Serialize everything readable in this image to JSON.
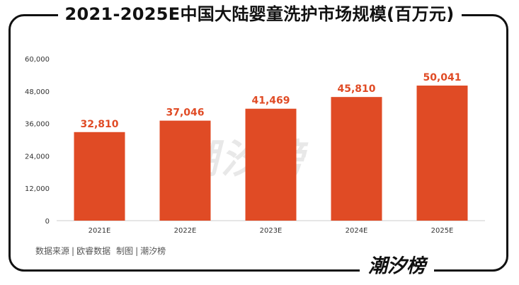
{
  "title": "2021-2025E中国大陆婴童洗护市场规模(百万元)",
  "source": {
    "data_label": "数据来源",
    "data_org": "欧睿数据",
    "made_label": "制图",
    "made_org": "潮汐榜"
  },
  "watermark_text": "潮汐榜",
  "footer_logo": "潮汐榜",
  "colors": {
    "bar": "#E04B25",
    "value_label": "#E04B25",
    "axis_text": "#333333",
    "grid": "#e6e6e6",
    "frame": "#111111"
  },
  "chart_data": {
    "type": "bar",
    "categories": [
      "2021E",
      "2022E",
      "2023E",
      "2024E",
      "2025E"
    ],
    "values": [
      32810,
      37046,
      41469,
      45810,
      50041
    ],
    "value_labels": [
      "32,810",
      "37,046",
      "41,469",
      "45,810",
      "50,041"
    ],
    "yticks": [
      0,
      12000,
      24000,
      36000,
      48000,
      60000
    ],
    "ytick_labels": [
      "0",
      "12,000",
      "24,000",
      "36,000",
      "48,000",
      "60,000"
    ],
    "ylim": [
      0,
      60000
    ],
    "title": "2021-2025E中国大陆婴童洗护市场规模(百万元)",
    "xlabel": "",
    "ylabel": "",
    "grid": false,
    "legend": "none"
  }
}
